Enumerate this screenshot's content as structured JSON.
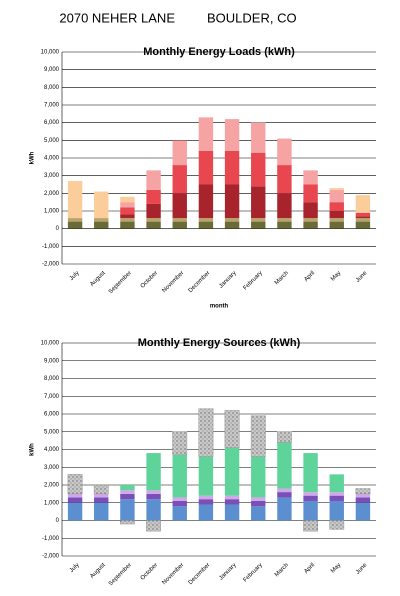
{
  "header": [
    "2070 NEHER LANE",
    "BOULDER, CO"
  ],
  "chart_data": [
    {
      "type": "stacked-bar",
      "title": "Monthly Energy Loads (kWh)",
      "ylabel": "kWh",
      "xlabel": "month",
      "categories": [
        "July",
        "August",
        "September",
        "October",
        "November",
        "December",
        "January",
        "February",
        "March",
        "April",
        "May",
        "June"
      ],
      "series": [
        {
          "color": "#6b6b3a",
          "values": [
            400,
            400,
            400,
            400,
            400,
            400,
            400,
            400,
            400,
            400,
            400,
            400
          ]
        },
        {
          "color": "#b8a46a",
          "values": [
            200,
            200,
            200,
            200,
            200,
            200,
            200,
            200,
            200,
            200,
            200,
            200
          ]
        },
        {
          "color": "#a8242c",
          "values": [
            0,
            0,
            200,
            800,
            1400,
            1900,
            1900,
            1800,
            1400,
            900,
            400,
            100
          ]
        },
        {
          "color": "#e8474f",
          "values": [
            0,
            0,
            400,
            800,
            1600,
            1900,
            1900,
            1900,
            1600,
            1000,
            500,
            200
          ]
        },
        {
          "color": "#f5a3a3",
          "values": [
            0,
            0,
            300,
            1100,
            1400,
            1900,
            1800,
            1700,
            1500,
            800,
            700,
            0
          ]
        },
        {
          "color": "#fbcd9a",
          "values": [
            2100,
            1500,
            300,
            0,
            0,
            0,
            0,
            0,
            0,
            0,
            100,
            1000
          ]
        }
      ],
      "ylim": [
        -2000,
        10000
      ],
      "yticks": [
        {
          "value": -2000,
          "label": "-2,000"
        },
        {
          "value": -1000,
          "label": "-1,000"
        },
        0,
        {
          "value": 1000,
          "label": "1,000"
        },
        {
          "value": 2000,
          "label": "2,000"
        },
        {
          "value": 3000,
          "label": "3,000"
        },
        {
          "value": 4000,
          "label": "4,000"
        },
        {
          "value": 5000,
          "label": "5,000"
        },
        {
          "value": 6000,
          "label": "6,000"
        },
        {
          "value": 7000,
          "label": "7,000"
        },
        {
          "value": 8000,
          "label": "8,000"
        },
        {
          "value": 9000,
          "label": "9,000"
        },
        {
          "value": 10000,
          "label": "10,000"
        }
      ],
      "grid": true
    },
    {
      "type": "stacked-bar",
      "title": "Monthly Energy Sources (kWh)",
      "ylabel": "kWh",
      "categories": [
        "July",
        "August",
        "September",
        "October",
        "November",
        "December",
        "January",
        "February",
        "March",
        "April",
        "May",
        "June"
      ],
      "series": [
        {
          "color": "#5b8fd0",
          "values": [
            1000,
            1000,
            1200,
            1200,
            800,
            900,
            900,
            800,
            1300,
            1100,
            1100,
            1000
          ]
        },
        {
          "color": "#7a4fb8",
          "values": [
            300,
            300,
            300,
            300,
            300,
            300,
            300,
            300,
            300,
            300,
            300,
            300
          ]
        },
        {
          "color": "#d0a8e8",
          "values": [
            200,
            200,
            200,
            200,
            200,
            200,
            200,
            200,
            200,
            200,
            200,
            200
          ]
        },
        {
          "color": "#5fd49a",
          "values": [
            0,
            0,
            300,
            2100,
            2400,
            2200,
            2700,
            2300,
            2600,
            2200,
            1000,
            0
          ]
        },
        {
          "color": "#b0b0b0",
          "values": [
            1100,
            500,
            -200,
            -600,
            1300,
            2700,
            2100,
            2300,
            600,
            -600,
            -500,
            300
          ]
        }
      ],
      "ylim": [
        -2000,
        10000
      ],
      "yticks": [
        {
          "value": -2000,
          "label": "-2,000"
        },
        {
          "value": -1000,
          "label": "-1,000"
        },
        0,
        {
          "value": 1000,
          "label": "1,000"
        },
        {
          "value": 2000,
          "label": "2,000"
        },
        {
          "value": 3000,
          "label": "3,000"
        },
        {
          "value": 4000,
          "label": "4,000"
        },
        {
          "value": 5000,
          "label": "5,000"
        },
        {
          "value": 6000,
          "label": "6,000"
        },
        {
          "value": 7000,
          "label": "7,000"
        },
        {
          "value": 8000,
          "label": "8,000"
        },
        {
          "value": 9000,
          "label": "9,000"
        },
        {
          "value": 10000,
          "label": "10,000"
        }
      ],
      "grid": true
    }
  ]
}
